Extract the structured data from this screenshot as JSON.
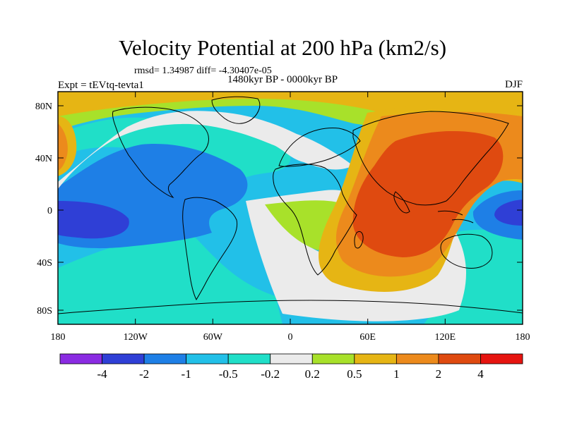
{
  "title": "Velocity Potential at 200 hPa (km2/s)",
  "stats_line": "rmsd= 1.34987 diff= -4.30407e-05",
  "period": "1480kyr BP - 0000kyr BP",
  "experiment": "Expt = tEVtq-tevta1",
  "season": "DJF",
  "lat_ticks": [
    "80N",
    "40N",
    "0",
    "40S",
    "80S"
  ],
  "lon_ticks": [
    "180",
    "120W",
    "60W",
    "0",
    "60E",
    "120E",
    "180"
  ],
  "colorbar": {
    "labels": [
      "-4",
      "-2",
      "-1",
      "-0.5",
      "-0.2",
      "0.2",
      "0.5",
      "1",
      "2",
      "4"
    ],
    "colors": [
      "#8a2be2",
      "#2f3fd6",
      "#1e7fe6",
      "#22c0e8",
      "#20dfc8",
      "#ebebeb",
      "#a8e12a",
      "#e6b514",
      "#ec8a1c",
      "#df4a10",
      "#e61410"
    ]
  },
  "field_colors": {
    "dark_blue": "#2f3fd6",
    "blue": "#1e7fe6",
    "light_blue": "#22c0e8",
    "cyan": "#20dfc8",
    "neutral": "#ebebeb",
    "yellow_green": "#a8e12a",
    "gold": "#e6b514",
    "orange": "#ec8a1c",
    "red_orange": "#df4a10"
  }
}
